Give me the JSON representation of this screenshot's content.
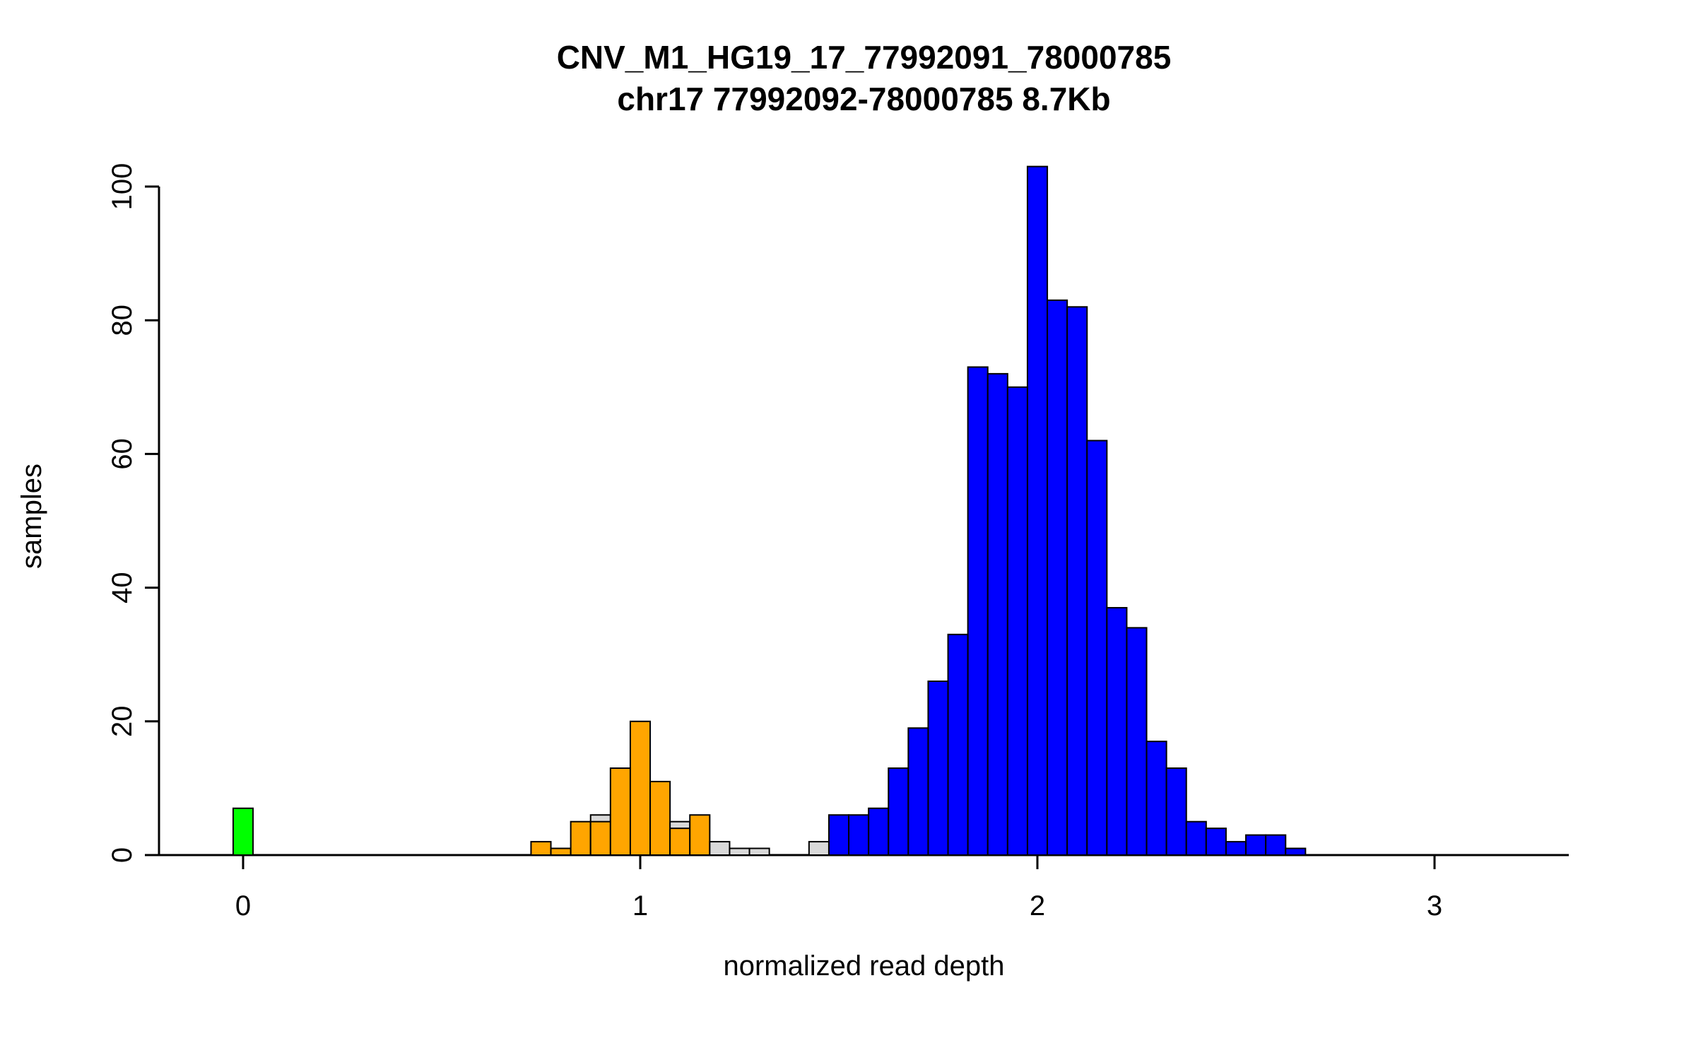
{
  "chart_data": {
    "type": "bar",
    "subtype": "histogram",
    "title": "CNV_M1_HG19_17_77992091_78000785",
    "subtitle": "chr17 77992092-78000785 8.7Kb",
    "xlabel": "normalized read depth",
    "ylabel": "samples",
    "xlim": [
      -0.2,
      3.35
    ],
    "ylim": [
      0,
      103
    ],
    "x_ticks": [
      0,
      1,
      2,
      3
    ],
    "y_ticks": [
      0,
      20,
      40,
      60,
      80,
      100
    ],
    "grid": false,
    "legend": "none",
    "bin_width": 0.05,
    "x_is": "bin_center",
    "colors": {
      "green": "#00ff00",
      "orange": "#ffa500",
      "blue": "#0000ff",
      "gray": "#d9d9d9",
      "axis": "#000000",
      "bar_border": "#000000"
    },
    "bars": [
      {
        "x": 0.0,
        "count": 7,
        "color": "green"
      },
      {
        "x": 0.75,
        "count": 2,
        "color": "orange"
      },
      {
        "x": 0.8,
        "count": 1,
        "color": "orange"
      },
      {
        "x": 0.85,
        "count": 5,
        "color": "orange"
      },
      {
        "x": 0.9,
        "count": 6,
        "color": "gray"
      },
      {
        "x": 0.9,
        "count": 5,
        "color": "orange"
      },
      {
        "x": 0.95,
        "count": 13,
        "color": "orange"
      },
      {
        "x": 1.0,
        "count": 20,
        "color": "orange"
      },
      {
        "x": 1.05,
        "count": 11,
        "color": "orange"
      },
      {
        "x": 1.1,
        "count": 5,
        "color": "gray"
      },
      {
        "x": 1.1,
        "count": 4,
        "color": "orange"
      },
      {
        "x": 1.15,
        "count": 6,
        "color": "orange"
      },
      {
        "x": 1.2,
        "count": 2,
        "color": "gray"
      },
      {
        "x": 1.25,
        "count": 1,
        "color": "gray"
      },
      {
        "x": 1.3,
        "count": 1,
        "color": "gray"
      },
      {
        "x": 1.45,
        "count": 2,
        "color": "gray"
      },
      {
        "x": 1.5,
        "count": 6,
        "color": "blue"
      },
      {
        "x": 1.55,
        "count": 6,
        "color": "blue"
      },
      {
        "x": 1.6,
        "count": 7,
        "color": "blue"
      },
      {
        "x": 1.65,
        "count": 13,
        "color": "blue"
      },
      {
        "x": 1.7,
        "count": 19,
        "color": "blue"
      },
      {
        "x": 1.75,
        "count": 26,
        "color": "blue"
      },
      {
        "x": 1.8,
        "count": 33,
        "color": "blue"
      },
      {
        "x": 1.85,
        "count": 73,
        "color": "blue"
      },
      {
        "x": 1.9,
        "count": 72,
        "color": "blue"
      },
      {
        "x": 1.95,
        "count": 70,
        "color": "blue"
      },
      {
        "x": 2.0,
        "count": 103,
        "color": "blue"
      },
      {
        "x": 2.05,
        "count": 83,
        "color": "blue"
      },
      {
        "x": 2.1,
        "count": 82,
        "color": "blue"
      },
      {
        "x": 2.15,
        "count": 62,
        "color": "blue"
      },
      {
        "x": 2.2,
        "count": 37,
        "color": "blue"
      },
      {
        "x": 2.25,
        "count": 34,
        "color": "blue"
      },
      {
        "x": 2.3,
        "count": 17,
        "color": "blue"
      },
      {
        "x": 2.35,
        "count": 13,
        "color": "blue"
      },
      {
        "x": 2.4,
        "count": 5,
        "color": "blue"
      },
      {
        "x": 2.45,
        "count": 4,
        "color": "blue"
      },
      {
        "x": 2.5,
        "count": 2,
        "color": "blue"
      },
      {
        "x": 2.55,
        "count": 3,
        "color": "blue"
      },
      {
        "x": 2.6,
        "count": 3,
        "color": "blue"
      },
      {
        "x": 2.65,
        "count": 1,
        "color": "blue"
      }
    ]
  }
}
